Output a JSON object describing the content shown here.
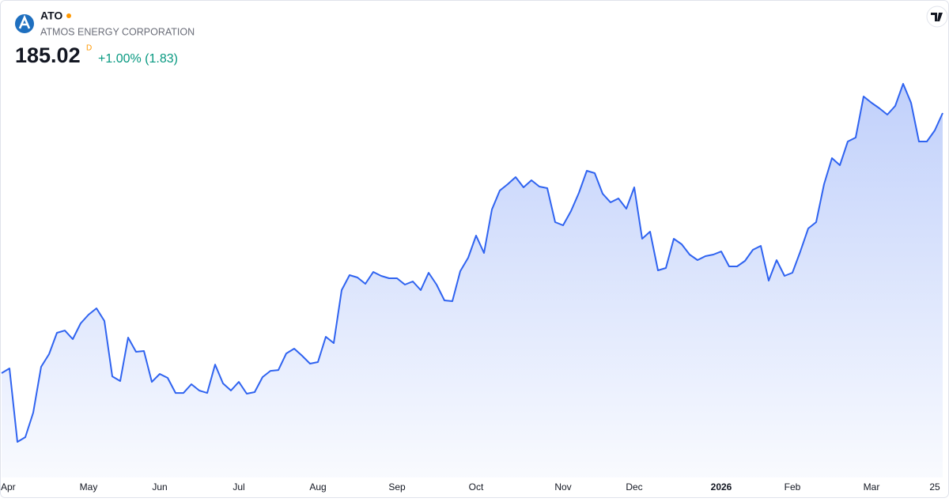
{
  "chart_data": {
    "type": "area",
    "symbol": "ATO",
    "company": "ATMOS ENERGY CORPORATION",
    "last_price": "185.02",
    "interval": "D",
    "change": "+1.00% (1.83)",
    "color": "#2f63f0",
    "categories": [
      "Apr",
      null,
      null,
      null,
      null,
      null,
      null,
      null,
      null,
      null,
      null,
      "May",
      null,
      null,
      null,
      null,
      null,
      null,
      null,
      null,
      "Jun",
      null,
      null,
      null,
      null,
      null,
      null,
      null,
      null,
      null,
      "Jul",
      null,
      null,
      null,
      null,
      null,
      null,
      null,
      null,
      null,
      "Aug",
      null,
      null,
      null,
      null,
      null,
      null,
      null,
      null,
      null,
      "Sep",
      null,
      null,
      null,
      null,
      null,
      null,
      null,
      null,
      null,
      "Oct",
      null,
      null,
      null,
      null,
      null,
      null,
      null,
      null,
      null,
      null,
      "Nov",
      null,
      null,
      null,
      null,
      null,
      null,
      null,
      null,
      "Dec",
      null,
      null,
      null,
      null,
      null,
      null,
      null,
      null,
      null,
      null,
      "2026",
      null,
      null,
      null,
      null,
      null,
      null,
      null,
      null,
      "Feb",
      null,
      null,
      null,
      null,
      null,
      null,
      null,
      null,
      null,
      "Mar",
      null,
      null,
      null,
      null,
      null,
      null,
      null,
      "25",
      null
    ],
    "values": [
      151.66,
      152.27,
      142.84,
      143.45,
      146.59,
      152.47,
      154.09,
      156.83,
      157.13,
      156.02,
      158.05,
      159.16,
      159.97,
      158.35,
      151.25,
      150.65,
      156.22,
      154.4,
      154.5,
      150.54,
      151.56,
      151.05,
      149.12,
      149.12,
      150.24,
      149.43,
      149.12,
      152.77,
      150.34,
      149.43,
      150.54,
      149.02,
      149.23,
      151.15,
      151.96,
      152.06,
      154.19,
      154.8,
      153.89,
      152.88,
      153.08,
      156.32,
      155.51,
      162.31,
      164.23,
      163.93,
      163.12,
      164.64,
      164.13,
      163.83,
      163.83,
      163.02,
      163.42,
      162.31,
      164.54,
      163.02,
      160.99,
      160.89,
      164.74,
      166.46,
      169.3,
      167.07,
      172.65,
      175.08,
      175.89,
      176.81,
      175.49,
      176.4,
      175.59,
      175.39,
      171.03,
      170.62,
      172.45,
      174.78,
      177.62,
      177.31,
      174.68,
      173.56,
      174.07,
      172.75,
      175.49,
      168.9,
      169.81,
      164.84,
      165.15,
      168.9,
      168.19,
      166.87,
      166.16,
      166.67,
      166.87,
      167.27,
      165.35,
      165.35,
      166.06,
      167.48,
      167.98,
      163.52,
      166.16,
      164.13,
      164.54,
      167.27,
      170.22,
      171.03,
      175.89,
      179.24,
      178.33,
      181.37,
      181.88,
      187.15,
      186.34,
      185.63,
      184.82,
      185.93,
      188.77,
      186.34,
      181.37,
      181.37,
      182.79,
      185.02
    ]
  }
}
